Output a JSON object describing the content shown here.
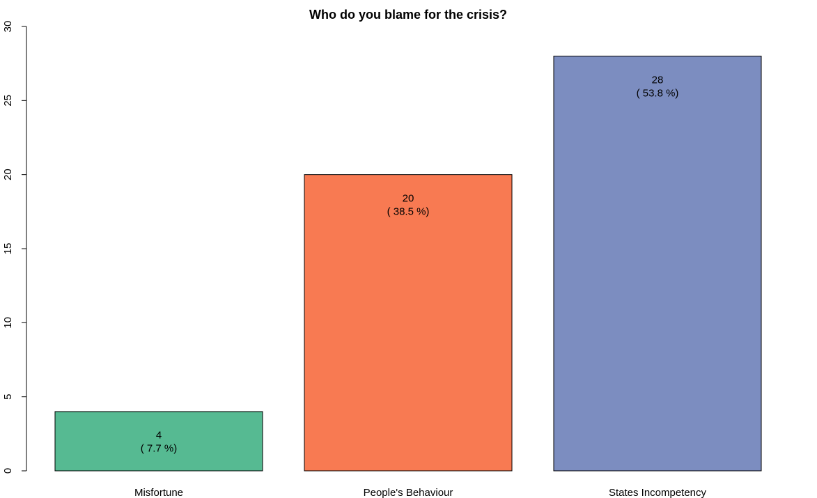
{
  "chart_data": {
    "type": "bar",
    "title": "Who do you blame for the crisis?",
    "xlabel": "",
    "ylabel": "",
    "categories": [
      "Misfortune",
      "People's Behaviour",
      "States Incompetency"
    ],
    "values": [
      4,
      20,
      28
    ],
    "data_labels": [
      [
        "4",
        "( 7.7 %)"
      ],
      [
        "20",
        "( 38.5 %)"
      ],
      [
        "28",
        "( 53.8 %)"
      ]
    ],
    "colors": [
      "#56BA92",
      "#F87A52",
      "#7C8DC0"
    ],
    "ylim": [
      0,
      30
    ],
    "yticks": [
      0,
      5,
      10,
      15,
      20,
      25,
      30
    ],
    "ytick_labels": [
      "0",
      "5",
      "10",
      "15",
      "20",
      "25",
      "30"
    ],
    "grid": false,
    "legend": "none"
  }
}
